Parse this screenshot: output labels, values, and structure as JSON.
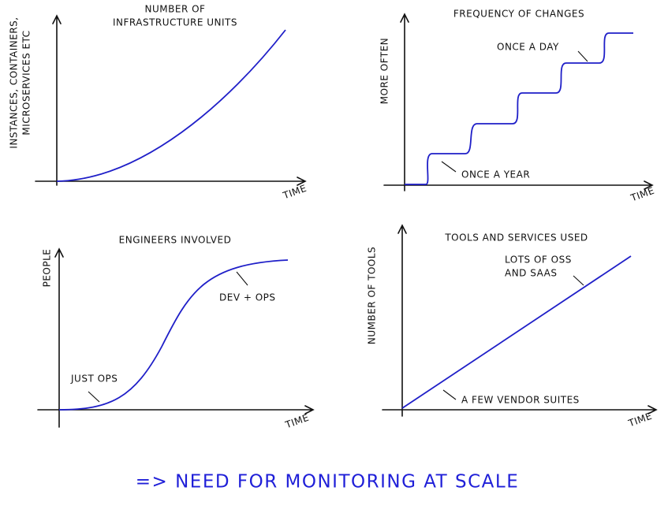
{
  "panels": [
    {
      "title": [
        "NUMBER OF",
        "INFRASTRUCTURE UNITS"
      ],
      "y_label": [
        "INSTANCES, CONTAINERS,",
        "MICROSERVICES ETC"
      ],
      "x_label": "TIME"
    },
    {
      "title": [
        "FREQUENCY OF CHANGES"
      ],
      "y_label": [
        "MORE OFTEN"
      ],
      "x_label": "TIME",
      "annotations": [
        [
          "ONCE A DAY"
        ],
        [
          "ONCE A YEAR"
        ]
      ]
    },
    {
      "title": [
        "ENGINEERS INVOLVED"
      ],
      "y_label": [
        "PEOPLE"
      ],
      "x_label": "TIME",
      "annotations": [
        [
          "DEV + OPS"
        ],
        [
          "JUST OPS"
        ]
      ]
    },
    {
      "title": [
        "TOOLS AND SERVICES USED"
      ],
      "y_label": [
        "NUMBER OF TOOLS"
      ],
      "x_label": "TIME",
      "annotations": [
        [
          "LOTS OF OSS",
          "AND SAAS"
        ],
        [
          "A FEW VENDOR SUITES"
        ]
      ]
    }
  ],
  "footer": "=> NEED FOR MONITORING AT SCALE"
}
